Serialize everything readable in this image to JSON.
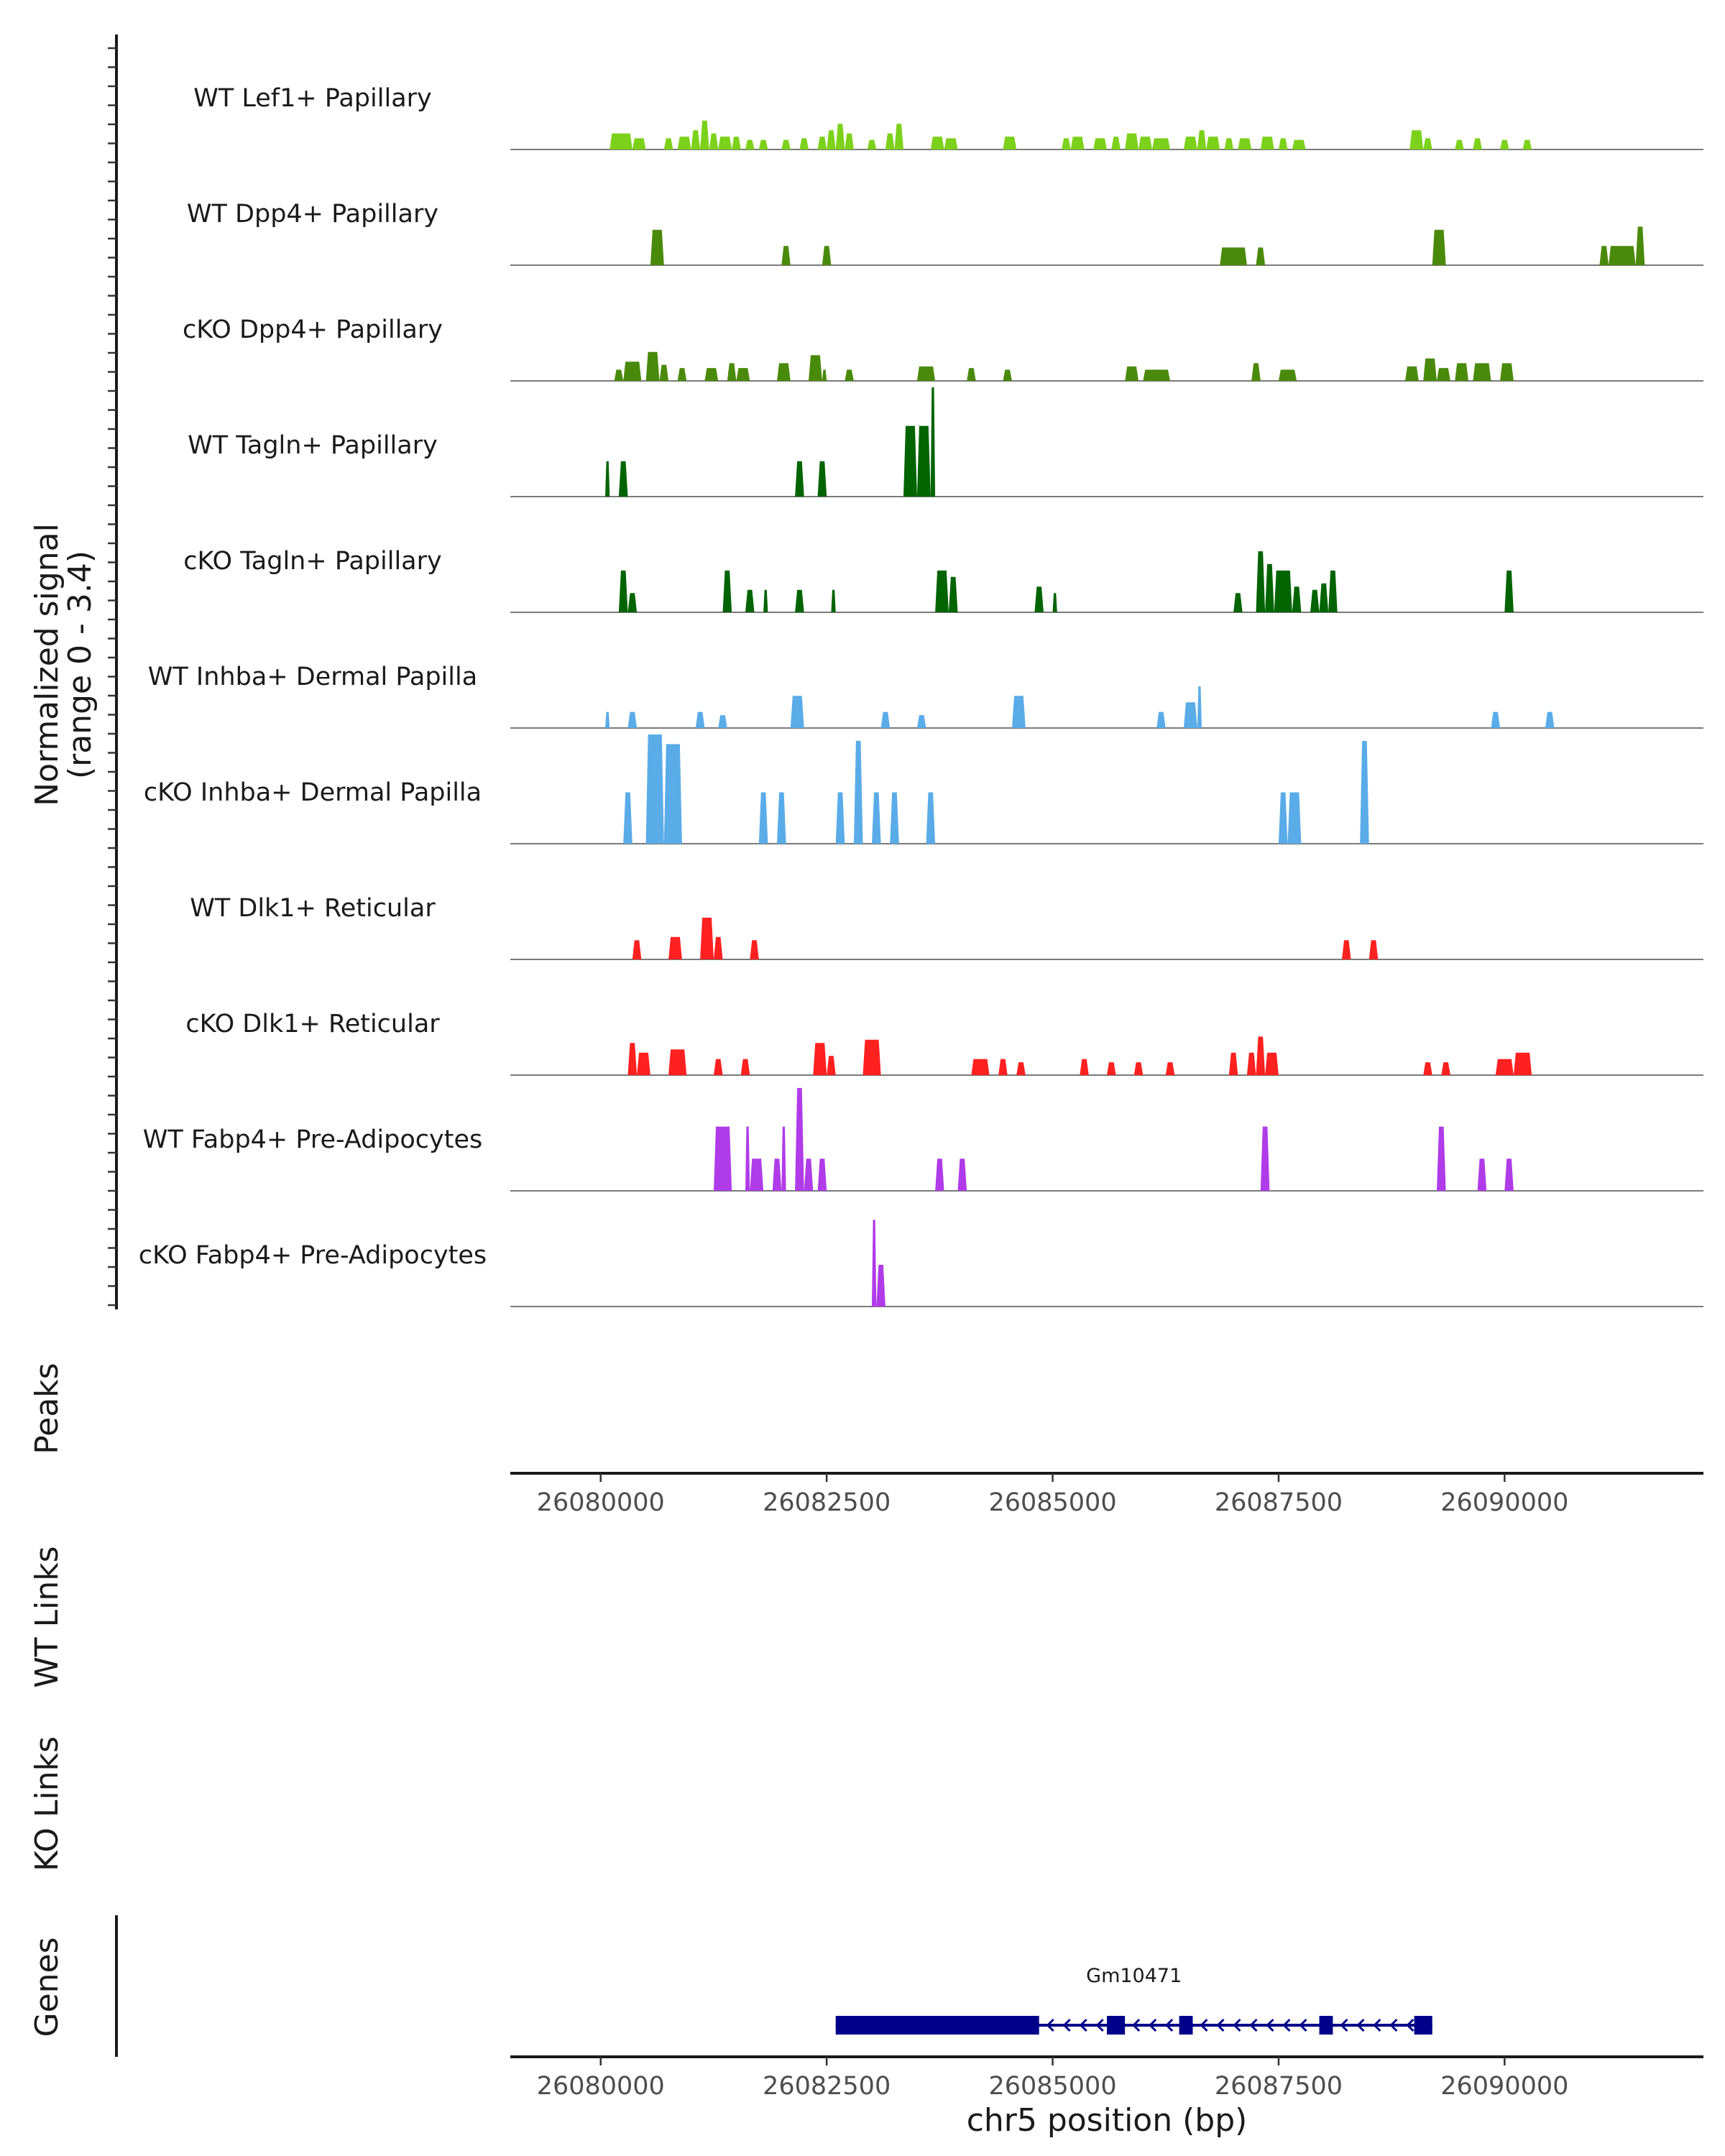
{
  "chart_data": {
    "type": "area",
    "region": {
      "chrom": "chr5",
      "start": 26079000,
      "end": 26092200
    },
    "signal_axis": {
      "title_line1": "Normalized signal",
      "title_line2": "(range 0 - 3.4)",
      "ylim": [
        0,
        3.4
      ]
    },
    "x_axis": {
      "title": "chr5 position (bp)",
      "ticks": [
        26080000,
        26082500,
        26085000,
        26087500,
        26090000
      ],
      "tick_labels": [
        "26080000",
        "26082500",
        "26085000",
        "26087500",
        "26090000"
      ]
    },
    "tracks": [
      {
        "name": "WT Lef1+ Papillary",
        "color": "#7cd11a",
        "peaks": [
          [
            26080100,
            26080350,
            0.5
          ],
          [
            26080350,
            26080500,
            0.35
          ],
          [
            26080700,
            26080800,
            0.35
          ],
          [
            26080850,
            26081000,
            0.4
          ],
          [
            26081000,
            26081100,
            0.6
          ],
          [
            26081100,
            26081200,
            0.9
          ],
          [
            26081200,
            26081300,
            0.5
          ],
          [
            26081300,
            26081450,
            0.4
          ],
          [
            26081450,
            26081550,
            0.4
          ],
          [
            26081600,
            26081700,
            0.3
          ],
          [
            26081750,
            26081850,
            0.3
          ],
          [
            26082000,
            26082100,
            0.3
          ],
          [
            26082200,
            26082300,
            0.35
          ],
          [
            26082400,
            26082500,
            0.4
          ],
          [
            26082500,
            26082600,
            0.6
          ],
          [
            26082600,
            26082700,
            0.8
          ],
          [
            26082700,
            26082800,
            0.5
          ],
          [
            26082950,
            26083050,
            0.3
          ],
          [
            26083150,
            26083250,
            0.5
          ],
          [
            26083250,
            26083350,
            0.8
          ],
          [
            26083650,
            26083800,
            0.4
          ],
          [
            26083800,
            26083950,
            0.35
          ],
          [
            26084450,
            26084600,
            0.4
          ],
          [
            26085100,
            26085200,
            0.35
          ],
          [
            26085200,
            26085350,
            0.4
          ],
          [
            26085450,
            26085600,
            0.35
          ],
          [
            26085650,
            26085750,
            0.4
          ],
          [
            26085800,
            26085950,
            0.5
          ],
          [
            26085950,
            26086100,
            0.4
          ],
          [
            26086100,
            26086300,
            0.35
          ],
          [
            26086450,
            26086600,
            0.4
          ],
          [
            26086600,
            26086700,
            0.6
          ],
          [
            26086700,
            26086850,
            0.4
          ],
          [
            26086900,
            26087000,
            0.35
          ],
          [
            26087050,
            26087200,
            0.35
          ],
          [
            26087300,
            26087450,
            0.4
          ],
          [
            26087500,
            26087600,
            0.35
          ],
          [
            26087650,
            26087800,
            0.3
          ],
          [
            26088950,
            26089100,
            0.6
          ],
          [
            26089100,
            26089200,
            0.35
          ],
          [
            26089450,
            26089550,
            0.3
          ],
          [
            26089650,
            26089750,
            0.35
          ],
          [
            26089950,
            26090050,
            0.3
          ],
          [
            26090200,
            26090300,
            0.3
          ]
        ]
      },
      {
        "name": "WT Dpp4+ Papillary",
        "color": "#4a8a0a",
        "peaks": [
          [
            26080550,
            26080700,
            1.1
          ],
          [
            26082000,
            26082100,
            0.6
          ],
          [
            26082450,
            26082550,
            0.6
          ],
          [
            26086850,
            26087150,
            0.55
          ],
          [
            26087250,
            26087350,
            0.55
          ],
          [
            26089200,
            26089350,
            1.1
          ],
          [
            26091050,
            26091150,
            0.6
          ],
          [
            26091150,
            26091450,
            0.6
          ],
          [
            26091450,
            26091550,
            1.2
          ]
        ]
      },
      {
        "name": "cKO Dpp4+ Papillary",
        "color": "#4a8a0a",
        "peaks": [
          [
            26080150,
            26080250,
            0.35
          ],
          [
            26080250,
            26080450,
            0.6
          ],
          [
            26080500,
            26080650,
            0.9
          ],
          [
            26080650,
            26080750,
            0.5
          ],
          [
            26080850,
            26080950,
            0.4
          ],
          [
            26081150,
            26081300,
            0.4
          ],
          [
            26081400,
            26081500,
            0.55
          ],
          [
            26081500,
            26081650,
            0.4
          ],
          [
            26081950,
            26082100,
            0.55
          ],
          [
            26082300,
            26082450,
            0.8
          ],
          [
            26082450,
            26082500,
            0.35
          ],
          [
            26082700,
            26082800,
            0.35
          ],
          [
            26083500,
            26083700,
            0.45
          ],
          [
            26084050,
            26084150,
            0.4
          ],
          [
            26084450,
            26084550,
            0.35
          ],
          [
            26085800,
            26085950,
            0.45
          ],
          [
            26086000,
            26086300,
            0.35
          ],
          [
            26087200,
            26087300,
            0.55
          ],
          [
            26087500,
            26087700,
            0.35
          ],
          [
            26088900,
            26089050,
            0.45
          ],
          [
            26089100,
            26089250,
            0.7
          ],
          [
            26089250,
            26089400,
            0.4
          ],
          [
            26089450,
            26089600,
            0.55
          ],
          [
            26089650,
            26089850,
            0.55
          ],
          [
            26089950,
            26090100,
            0.55
          ]
        ]
      },
      {
        "name": "WT Tagln+ Papillary",
        "color": "#006400",
        "peaks": [
          [
            26080050,
            26080100,
            1.1
          ],
          [
            26080200,
            26080300,
            1.1
          ],
          [
            26082150,
            26082250,
            1.1
          ],
          [
            26082400,
            26082500,
            1.1
          ],
          [
            26083350,
            26083500,
            2.2
          ],
          [
            26083500,
            26083650,
            2.2
          ],
          [
            26083650,
            26083700,
            3.4
          ]
        ]
      },
      {
        "name": "cKO Tagln+ Papillary",
        "color": "#006400",
        "peaks": [
          [
            26080200,
            26080300,
            1.3
          ],
          [
            26080300,
            26080400,
            0.6
          ],
          [
            26081350,
            26081450,
            1.3
          ],
          [
            26081600,
            26081700,
            0.7
          ],
          [
            26081800,
            26081850,
            0.7
          ],
          [
            26082150,
            26082250,
            0.7
          ],
          [
            26082550,
            26082600,
            0.7
          ],
          [
            26083700,
            26083850,
            1.3
          ],
          [
            26083850,
            26083950,
            1.1
          ],
          [
            26084800,
            26084900,
            0.8
          ],
          [
            26085000,
            26085050,
            0.6
          ],
          [
            26087000,
            26087100,
            0.6
          ],
          [
            26087250,
            26087350,
            1.9
          ],
          [
            26087350,
            26087450,
            1.5
          ],
          [
            26087450,
            26087650,
            1.3
          ],
          [
            26087650,
            26087750,
            0.8
          ],
          [
            26087850,
            26087950,
            0.7
          ],
          [
            26087950,
            26088050,
            0.9
          ],
          [
            26088050,
            26088150,
            1.3
          ],
          [
            26090000,
            26090100,
            1.3
          ]
        ]
      },
      {
        "name": "WT Inhba+ Dermal Papilla",
        "color": "#5aace8",
        "peaks": [
          [
            26080050,
            26080100,
            0.5
          ],
          [
            26080300,
            26080400,
            0.5
          ],
          [
            26081050,
            26081150,
            0.5
          ],
          [
            26081300,
            26081400,
            0.4
          ],
          [
            26082100,
            26082250,
            1.0
          ],
          [
            26083100,
            26083200,
            0.5
          ],
          [
            26083500,
            26083600,
            0.4
          ],
          [
            26084550,
            26084700,
            1.0
          ],
          [
            26086150,
            26086250,
            0.5
          ],
          [
            26086450,
            26086600,
            0.8
          ],
          [
            26086600,
            26086650,
            1.3
          ],
          [
            26089850,
            26089950,
            0.5
          ],
          [
            26090450,
            26090550,
            0.5
          ]
        ]
      },
      {
        "name": "cKO Inhba+ Dermal Papilla",
        "color": "#5aace8",
        "peaks": [
          [
            26080250,
            26080350,
            1.6
          ],
          [
            26080500,
            26080700,
            3.4
          ],
          [
            26080700,
            26080900,
            3.1
          ],
          [
            26081750,
            26081850,
            1.6
          ],
          [
            26081950,
            26082050,
            1.6
          ],
          [
            26082600,
            26082700,
            1.6
          ],
          [
            26082800,
            26082900,
            3.2
          ],
          [
            26083000,
            26083100,
            1.6
          ],
          [
            26083200,
            26083300,
            1.6
          ],
          [
            26083600,
            26083700,
            1.6
          ],
          [
            26087500,
            26087600,
            1.6
          ],
          [
            26087600,
            26087750,
            1.6
          ],
          [
            26088400,
            26088500,
            3.2
          ]
        ]
      },
      {
        "name": "WT Dlk1+ Reticular",
        "color": "#ff2020",
        "peaks": [
          [
            26080350,
            26080450,
            0.6
          ],
          [
            26080750,
            26080900,
            0.7
          ],
          [
            26081100,
            26081250,
            1.3
          ],
          [
            26081250,
            26081350,
            0.7
          ],
          [
            26081650,
            26081750,
            0.6
          ],
          [
            26088200,
            26088300,
            0.6
          ],
          [
            26088500,
            26088600,
            0.6
          ]
        ]
      },
      {
        "name": "cKO Dlk1+ Reticular",
        "color": "#ff2020",
        "peaks": [
          [
            26080300,
            26080400,
            1.0
          ],
          [
            26080400,
            26080550,
            0.7
          ],
          [
            26080750,
            26080950,
            0.8
          ],
          [
            26081250,
            26081350,
            0.5
          ],
          [
            26081550,
            26081650,
            0.5
          ],
          [
            26082350,
            26082500,
            1.0
          ],
          [
            26082500,
            26082600,
            0.6
          ],
          [
            26082900,
            26083100,
            1.1
          ],
          [
            26084100,
            26084300,
            0.5
          ],
          [
            26084400,
            26084500,
            0.5
          ],
          [
            26084600,
            26084700,
            0.4
          ],
          [
            26085300,
            26085400,
            0.5
          ],
          [
            26085600,
            26085700,
            0.4
          ],
          [
            26085900,
            26086000,
            0.4
          ],
          [
            26086250,
            26086350,
            0.4
          ],
          [
            26086950,
            26087050,
            0.7
          ],
          [
            26087150,
            26087250,
            0.7
          ],
          [
            26087250,
            26087350,
            1.2
          ],
          [
            26087350,
            26087500,
            0.7
          ],
          [
            26089100,
            26089200,
            0.4
          ],
          [
            26089300,
            26089400,
            0.4
          ],
          [
            26089900,
            26090100,
            0.5
          ],
          [
            26090100,
            26090300,
            0.7
          ]
        ]
      },
      {
        "name": "WT Fabp4+ Pre-Adipocytes",
        "color": "#b03be8",
        "peaks": [
          [
            26081250,
            26081450,
            2.0
          ],
          [
            26081600,
            26081650,
            2.0
          ],
          [
            26081650,
            26081800,
            1.0
          ],
          [
            26081900,
            26082000,
            1.0
          ],
          [
            26082000,
            26082050,
            2.0
          ],
          [
            26082150,
            26082250,
            3.2
          ],
          [
            26082250,
            26082350,
            1.0
          ],
          [
            26082400,
            26082500,
            1.0
          ],
          [
            26083700,
            26083800,
            1.0
          ],
          [
            26083950,
            26084050,
            1.0
          ],
          [
            26087300,
            26087400,
            2.0
          ],
          [
            26089250,
            26089350,
            2.0
          ],
          [
            26089700,
            26089800,
            1.0
          ],
          [
            26090000,
            26090100,
            1.0
          ]
        ]
      },
      {
        "name": "cKO Fabp4+ Pre-Adipocytes",
        "color": "#b03be8",
        "peaks": [
          [
            26083000,
            26083050,
            2.7
          ],
          [
            26083050,
            26083150,
            1.3
          ]
        ]
      }
    ],
    "empty_tracks": [
      "Peaks",
      "WT Links",
      "KO Links"
    ],
    "genes_track": {
      "label": "Genes",
      "gene": {
        "name": "Gm10471",
        "start": 26082600,
        "end": 26089200,
        "strand": "-",
        "exons": [
          [
            26082600,
            26084850
          ],
          [
            26085600,
            26085800
          ],
          [
            26086400,
            26086550
          ],
          [
            26087950,
            26088100
          ],
          [
            26089000,
            26089200
          ]
        ]
      },
      "color": "#00008b"
    }
  }
}
